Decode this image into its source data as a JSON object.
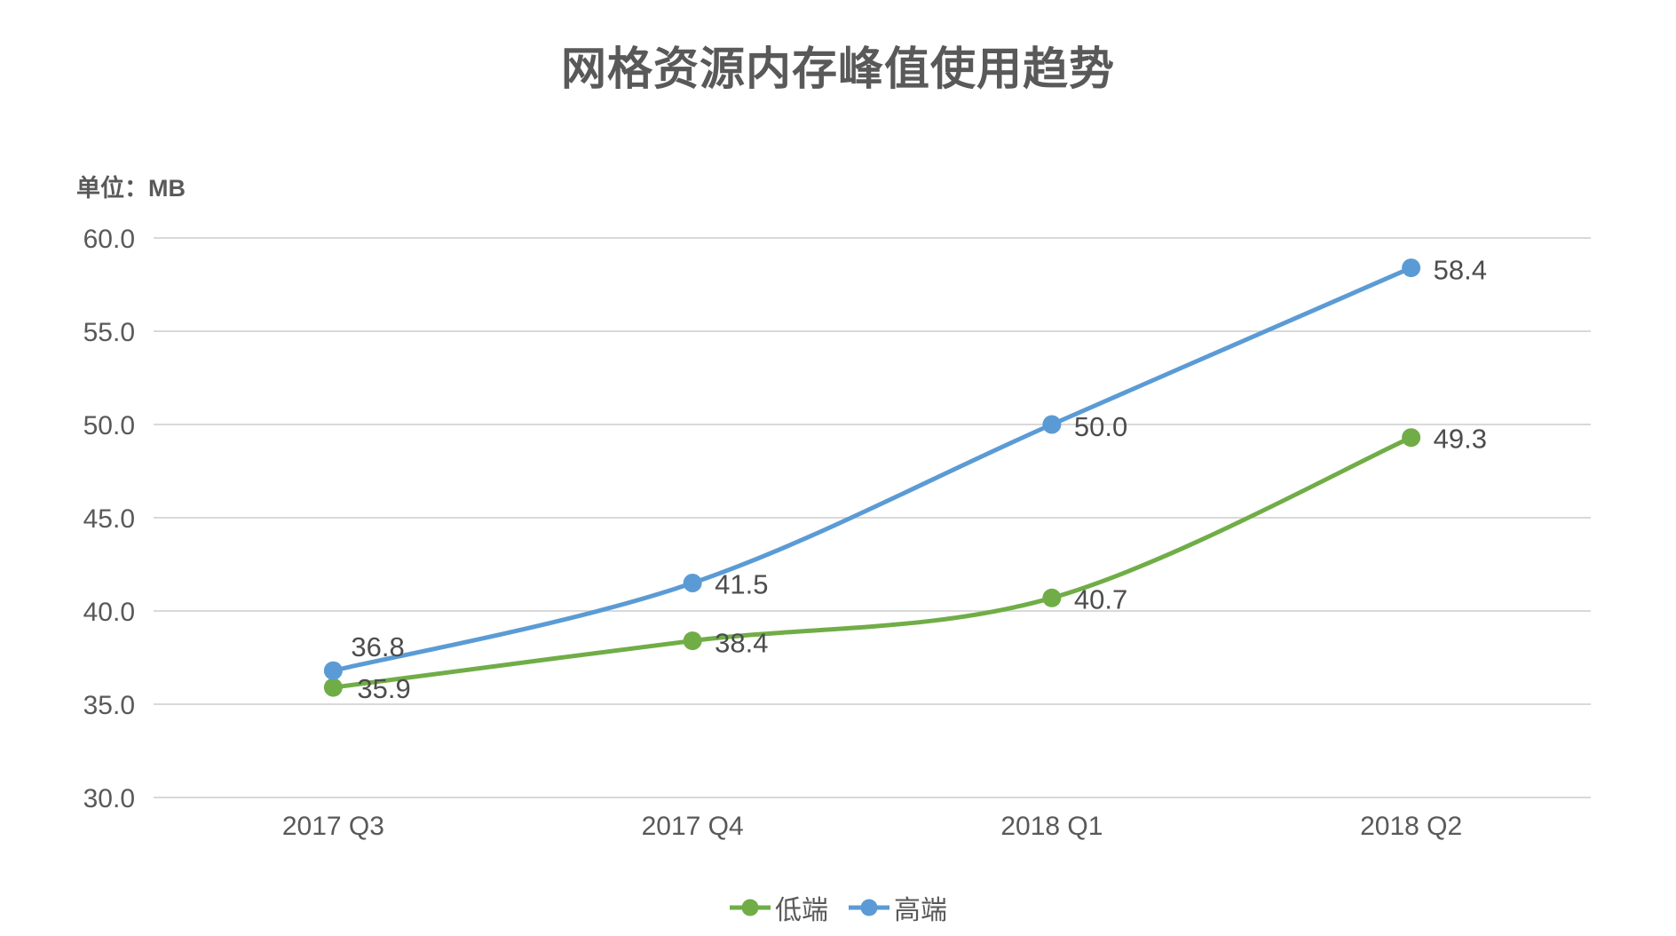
{
  "header": {
    "title": "网格资源内存峰值使用趋势",
    "unit_label": "单位：MB"
  },
  "chart_data": {
    "type": "line",
    "title": "网格资源内存峰值使用趋势",
    "ylabel": "单位：MB",
    "categories": [
      "2017 Q3",
      "2017 Q4",
      "2018 Q1",
      "2018 Q2"
    ],
    "series": [
      {
        "name": "低端",
        "color": "#70AD47",
        "values": [
          35.9,
          38.4,
          40.7,
          49.3
        ],
        "data_labels": [
          "35.9",
          "38.4",
          "40.7",
          "49.3"
        ],
        "label_offsets": [
          [
            27,
            1
          ],
          [
            25,
            2
          ],
          [
            25,
            1
          ],
          [
            25,
            1
          ]
        ]
      },
      {
        "name": "高端",
        "color": "#5B9BD5",
        "values": [
          36.8,
          41.5,
          50.0,
          58.4
        ],
        "data_labels": [
          "36.8",
          "41.5",
          "50.0",
          "58.4"
        ],
        "label_offsets": [
          [
            20,
            -27
          ],
          [
            25,
            1
          ],
          [
            25,
            2
          ],
          [
            25,
            2
          ]
        ]
      }
    ],
    "ylim": [
      30,
      60
    ],
    "ytick_step": 5,
    "yticks": [
      "30.0",
      "35.0",
      "40.0",
      "45.0",
      "50.0",
      "55.0",
      "60.0"
    ],
    "grid": true,
    "legend_position": "bottom",
    "colors": {
      "text": "#595959",
      "grid": "#D9D9D9",
      "data_label": "#4d4d4d",
      "background": "#ffffff"
    }
  }
}
